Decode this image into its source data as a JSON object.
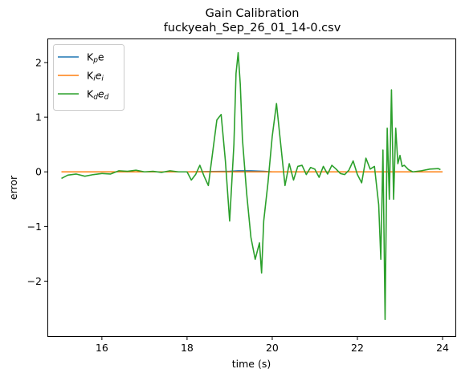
{
  "chart_data": {
    "type": "line",
    "title": "Gain Calibration",
    "subtitle": "fuckyeah_Sep_26_01_14-0.csv",
    "xlabel": "time (s)",
    "ylabel": "error",
    "xlim": [
      14.72,
      24.32
    ],
    "ylim": [
      -3.02,
      2.44
    ],
    "xticks": [
      16,
      18,
      20,
      22,
      24
    ],
    "yticks": [
      -2,
      -1,
      0,
      1,
      2
    ],
    "xtick_labels": [
      "16",
      "18",
      "20",
      "22",
      "24"
    ],
    "ytick_labels": [
      "−2",
      "−1",
      "0",
      "1",
      "2"
    ],
    "legend_position": "top-left",
    "grid": false,
    "series": [
      {
        "name": "Kₚe",
        "name_main": "K",
        "name_sub": "p",
        "name_rest": "e",
        "color": "#1f77b4",
        "x": [
          15.05,
          16,
          17,
          18,
          19,
          19.2,
          19.5,
          19.8,
          20,
          21,
          22,
          23,
          24
        ],
        "y": [
          0.0,
          0.0,
          0.0,
          0.0,
          0.01,
          0.02,
          0.02,
          0.01,
          0.0,
          0.0,
          0.0,
          0.0,
          0.0
        ]
      },
      {
        "name": "Kᵢeᵢ",
        "name_main": "K",
        "name_sub": "i",
        "name_rest": "e",
        "name_rest_sub": "i",
        "color": "#ff7f0e",
        "x": [
          15.05,
          16,
          17,
          18,
          19,
          20,
          21,
          22,
          23,
          24
        ],
        "y": [
          0.0,
          0.0,
          0.0,
          0.0,
          0.0,
          0.0,
          0.0,
          0.0,
          0.0,
          0.0
        ]
      },
      {
        "name": "K_d e_d",
        "name_main": "K",
        "name_sub": "d",
        "name_rest": "e",
        "name_rest_sub": "d",
        "color": "#2ca02c",
        "x": [
          15.05,
          15.2,
          15.4,
          15.6,
          15.8,
          16.0,
          16.2,
          16.4,
          16.6,
          16.8,
          17.0,
          17.2,
          17.4,
          17.6,
          17.8,
          18.0,
          18.1,
          18.2,
          18.3,
          18.4,
          18.5,
          18.6,
          18.7,
          18.8,
          18.9,
          19.0,
          19.1,
          19.15,
          19.2,
          19.25,
          19.3,
          19.4,
          19.5,
          19.6,
          19.7,
          19.75,
          19.8,
          19.9,
          20.0,
          20.1,
          20.2,
          20.3,
          20.4,
          20.5,
          20.6,
          20.7,
          20.8,
          20.9,
          21.0,
          21.1,
          21.2,
          21.3,
          21.4,
          21.5,
          21.6,
          21.7,
          21.8,
          21.9,
          22.0,
          22.1,
          22.2,
          22.3,
          22.4,
          22.5,
          22.55,
          22.6,
          22.65,
          22.7,
          22.75,
          22.8,
          22.85,
          22.9,
          22.95,
          23.0,
          23.05,
          23.1,
          23.2,
          23.3,
          23.5,
          23.7,
          23.9,
          23.95
        ],
        "y": [
          -0.12,
          -0.06,
          -0.04,
          -0.08,
          -0.05,
          -0.03,
          -0.04,
          0.02,
          0.01,
          0.03,
          0.0,
          0.01,
          -0.01,
          0.02,
          0.0,
          0.0,
          -0.15,
          -0.05,
          0.12,
          -0.08,
          -0.25,
          0.35,
          0.95,
          1.05,
          0.2,
          -0.9,
          0.5,
          1.8,
          2.18,
          1.6,
          0.6,
          -0.4,
          -1.2,
          -1.6,
          -1.3,
          -1.85,
          -0.9,
          -0.2,
          0.65,
          1.25,
          0.5,
          -0.25,
          0.15,
          -0.15,
          0.1,
          0.12,
          -0.05,
          0.08,
          0.05,
          -0.1,
          0.1,
          -0.04,
          0.12,
          0.05,
          -0.03,
          -0.05,
          0.03,
          0.2,
          -0.05,
          -0.2,
          0.25,
          0.05,
          0.1,
          -0.6,
          -1.6,
          0.4,
          -2.7,
          0.8,
          -0.5,
          1.5,
          -0.5,
          0.8,
          0.15,
          0.3,
          0.1,
          0.12,
          0.04,
          0.0,
          0.02,
          0.05,
          0.06,
          0.04
        ]
      }
    ]
  }
}
